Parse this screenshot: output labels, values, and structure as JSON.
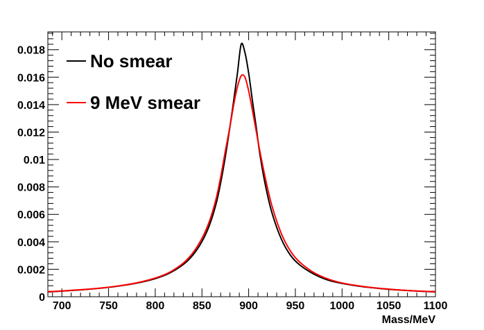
{
  "chart_data": {
    "type": "line",
    "title": "",
    "xlabel": "Mass/MeV",
    "ylabel": "",
    "xlim": [
      685,
      1100
    ],
    "ylim": [
      0,
      0.0193
    ],
    "xticks": [
      700,
      750,
      800,
      850,
      900,
      950,
      1000,
      1050,
      1100
    ],
    "yticks": [
      0,
      0.002,
      0.004,
      0.006,
      0.008,
      0.01,
      0.012,
      0.014,
      0.016,
      0.018
    ],
    "ytick_labels": [
      "0",
      "0.002",
      "0.004",
      "0.006",
      "0.008",
      "0.01",
      "0.012",
      "0.014",
      "0.016",
      "0.018"
    ],
    "grid": false,
    "legend": "top-left",
    "series": [
      {
        "name": "No smear",
        "color": "#000000",
        "x": [
          685,
          700,
          720,
          740,
          760,
          780,
          800,
          815,
          830,
          840,
          850,
          858,
          865,
          870,
          875,
          880,
          884,
          888,
          892,
          896,
          900,
          904,
          908,
          912,
          918,
          925,
          935,
          945,
          955,
          970,
          985,
          1000,
          1020,
          1040,
          1060,
          1080,
          1100
        ],
        "y": [
          0.00035,
          0.00041,
          0.0005,
          0.00061,
          0.00077,
          0.00099,
          0.00132,
          0.00171,
          0.00235,
          0.00301,
          0.00402,
          0.00521,
          0.00674,
          0.00829,
          0.0102,
          0.0124,
          0.0143,
          0.0163,
          0.0184,
          0.0178,
          0.0163,
          0.0143,
          0.0124,
          0.0104,
          0.0081,
          0.0061,
          0.0042,
          0.003,
          0.0023,
          0.00164,
          0.00121,
          0.00097,
          0.00075,
          0.0006,
          0.00049,
          0.00041,
          0.00035
        ]
      },
      {
        "name": "9 MeV smear",
        "color": "#ff0000",
        "x": [
          685,
          700,
          720,
          740,
          760,
          780,
          800,
          815,
          830,
          840,
          850,
          858,
          865,
          870,
          875,
          880,
          884,
          888,
          892,
          896,
          900,
          904,
          908,
          912,
          918,
          925,
          935,
          945,
          955,
          970,
          985,
          1000,
          1020,
          1040,
          1060,
          1080,
          1100
        ],
        "y": [
          0.00037,
          0.00042,
          0.00051,
          0.00062,
          0.00078,
          0.00101,
          0.00136,
          0.00177,
          0.00245,
          0.00317,
          0.00425,
          0.0055,
          0.0071,
          0.0087,
          0.0106,
          0.0124,
          0.014,
          0.0153,
          0.0161,
          0.016,
          0.015,
          0.0136,
          0.0121,
          0.0106,
          0.0086,
          0.0066,
          0.0046,
          0.0033,
          0.0025,
          0.00175,
          0.00129,
          0.001,
          0.00077,
          0.00061,
          0.0005,
          0.00042,
          0.00036
        ]
      }
    ]
  }
}
